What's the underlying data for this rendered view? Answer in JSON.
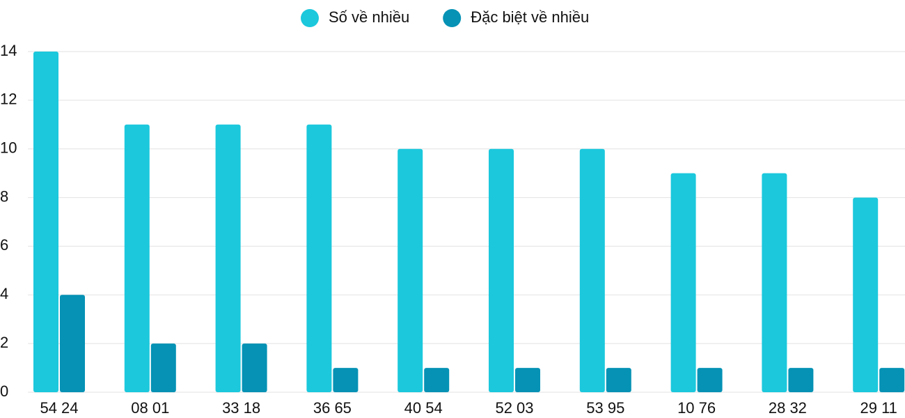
{
  "chart_data": {
    "type": "bar",
    "categories": [
      "54 24",
      "08 01",
      "33 18",
      "36 65",
      "40 54",
      "52 03",
      "53 95",
      "10 76",
      "28 32",
      "29 11"
    ],
    "series": [
      {
        "name": "Số về nhiều",
        "color": "#1bc8dc",
        "values": [
          14,
          11,
          11,
          11,
          10,
          10,
          10,
          9,
          9,
          8
        ]
      },
      {
        "name": "Đặc biệt về nhiều",
        "color": "#0592b5",
        "values": [
          4,
          2,
          2,
          1,
          1,
          1,
          1,
          1,
          1,
          1
        ]
      }
    ],
    "ylim": [
      0,
      14
    ],
    "yticks": [
      0,
      2,
      4,
      6,
      8,
      10,
      12,
      14
    ],
    "grid": true,
    "legend": "top"
  }
}
